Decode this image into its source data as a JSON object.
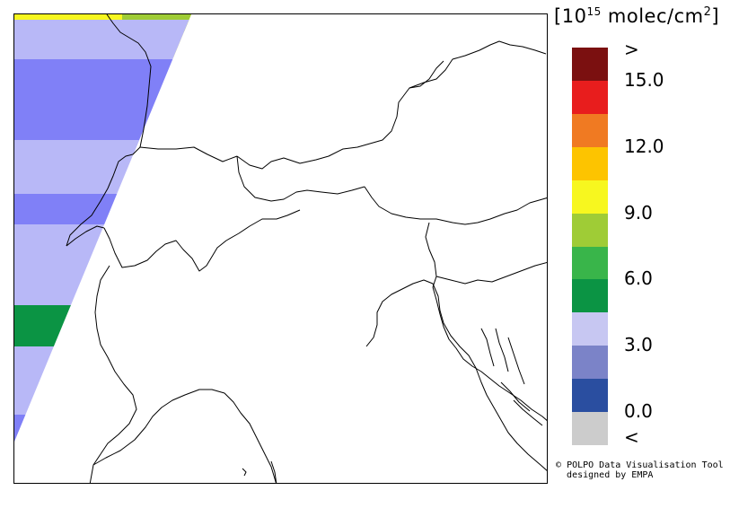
{
  "legend": {
    "title_base": "10",
    "title_exp": "15",
    "title_unit": "molec/cm",
    "title_unit_sup": "2",
    "ticks": [
      ">",
      "15.0",
      "12.0",
      "9.0",
      "6.0",
      "3.0",
      "0.0",
      "<"
    ],
    "colors": [
      "#7b1010",
      "#e81d1d",
      "#f07a22",
      "#fdc400",
      "#f7f71f",
      "#9fcc36",
      "#39b54a",
      "#0b9444",
      "#c7c7f2",
      "#7b83c8",
      "#2a4ea0",
      "#cccccc"
    ]
  },
  "credit": {
    "line1": "POLPO Data Visualisation Tool",
    "line2": "designed by EMPA",
    "symbol": "©"
  },
  "map": {
    "swath_colors": {
      "light_lavender": "#b8b8f7",
      "medium_blue": "#8080f7",
      "green": "#0b9444",
      "yellow": "#f7f71f",
      "light_green": "#9fcc36"
    }
  }
}
